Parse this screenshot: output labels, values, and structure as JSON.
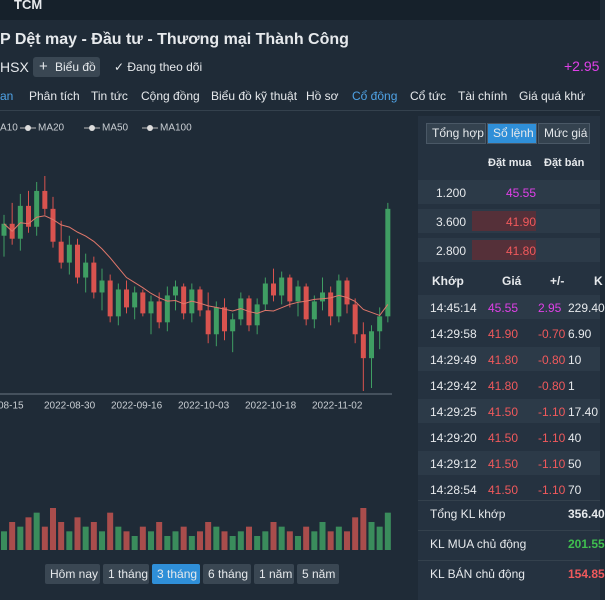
{
  "header": {
    "symbol": "TCM",
    "company": "P Dệt may - Đầu tư - Thương mại Thành Công",
    "exchange": "HSX",
    "chart_button": "Biểu đồ",
    "follow": "Đang theo dõi",
    "change": "+2.95"
  },
  "nav": [
    "an",
    "Phân tích",
    "Tin tức",
    "Cộng đồng",
    "Biểu đồ kỹ thuật",
    "Hồ sơ",
    "Cổ đông",
    "Cổ tức",
    "Tài chính",
    "Giá quá khứ"
  ],
  "chart": {
    "type": "candlestick",
    "legend": [
      "A10",
      "MA20",
      "MA50",
      "MA100"
    ],
    "x_labels": [
      "08-15",
      "2022-08-30",
      "2022-09-16",
      "2022-10-03",
      "2022-10-18",
      "2022-11-02"
    ],
    "candles": [
      [
        44.5,
        45.2,
        43.8,
        44.9
      ],
      [
        44.9,
        45.6,
        44.2,
        44.4
      ],
      [
        44.4,
        45.9,
        44.0,
        45.5
      ],
      [
        45.5,
        46.0,
        44.6,
        44.8
      ],
      [
        44.8,
        46.3,
        44.5,
        46.0
      ],
      [
        46.0,
        46.5,
        45.2,
        45.4
      ],
      [
        45.4,
        45.8,
        44.1,
        44.3
      ],
      [
        44.3,
        45.0,
        43.4,
        43.6
      ],
      [
        43.6,
        44.5,
        43.2,
        44.2
      ],
      [
        44.2,
        44.4,
        42.9,
        43.1
      ],
      [
        43.1,
        43.9,
        42.6,
        43.6
      ],
      [
        43.6,
        43.8,
        42.4,
        42.6
      ],
      [
        42.6,
        43.4,
        42.0,
        43.0
      ],
      [
        43.0,
        43.2,
        41.6,
        41.8
      ],
      [
        41.8,
        42.9,
        41.5,
        42.7
      ],
      [
        42.7,
        43.0,
        41.9,
        42.1
      ],
      [
        42.1,
        42.8,
        41.7,
        42.6
      ],
      [
        42.6,
        42.7,
        41.8,
        41.9
      ],
      [
        41.9,
        42.5,
        41.2,
        42.3
      ],
      [
        42.3,
        42.6,
        41.4,
        41.6
      ],
      [
        41.6,
        42.8,
        41.3,
        42.5
      ],
      [
        42.5,
        43.0,
        42.0,
        42.8
      ],
      [
        42.8,
        42.9,
        41.7,
        41.9
      ],
      [
        41.9,
        42.9,
        41.6,
        42.7
      ],
      [
        42.7,
        42.8,
        41.8,
        42.0
      ],
      [
        42.0,
        42.6,
        40.9,
        41.2
      ],
      [
        41.2,
        42.3,
        40.8,
        42.1
      ],
      [
        42.1,
        42.4,
        41.0,
        41.3
      ],
      [
        41.3,
        41.9,
        40.6,
        41.7
      ],
      [
        41.7,
        42.6,
        41.5,
        42.4
      ],
      [
        42.4,
        42.5,
        41.3,
        41.5
      ],
      [
        41.5,
        42.4,
        41.2,
        42.2
      ],
      [
        42.2,
        43.1,
        42.0,
        42.9
      ],
      [
        42.9,
        43.4,
        42.3,
        42.5
      ],
      [
        42.5,
        43.3,
        42.2,
        43.1
      ],
      [
        43.1,
        43.2,
        42.1,
        42.3
      ],
      [
        42.3,
        43.0,
        41.8,
        42.8
      ],
      [
        42.8,
        42.9,
        41.5,
        41.7
      ],
      [
        41.7,
        42.5,
        41.4,
        42.3
      ],
      [
        42.3,
        43.1,
        42.0,
        42.6
      ],
      [
        42.6,
        42.8,
        41.5,
        41.8
      ],
      [
        41.8,
        43.2,
        41.6,
        43.0
      ],
      [
        43.0,
        43.1,
        41.9,
        42.2
      ],
      [
        42.2,
        42.4,
        40.9,
        41.2
      ],
      [
        41.2,
        41.6,
        39.3,
        40.4
      ],
      [
        40.4,
        41.5,
        39.4,
        41.3
      ],
      [
        41.3,
        42.1,
        40.7,
        41.8
      ],
      [
        41.8,
        45.6,
        41.6,
        45.4
      ]
    ],
    "volume": [
      4,
      6,
      5,
      7,
      8,
      5,
      9,
      6,
      4,
      7,
      5,
      6,
      4,
      8,
      5,
      4,
      3,
      5,
      4,
      6,
      3,
      4,
      5,
      3,
      4,
      6,
      5,
      4,
      3,
      4,
      5,
      3,
      4,
      6,
      5,
      4,
      3,
      5,
      4,
      6,
      4,
      5,
      4,
      7,
      9,
      6,
      5,
      8
    ],
    "ranges": [
      "Hôm nay",
      "1 tháng",
      "3 tháng",
      "6 tháng",
      "1 năm",
      "5 năm"
    ],
    "active_range": 2
  },
  "orderbook": {
    "tabs": [
      "Tổng hợp",
      "Sổ lệnh",
      "Mức giá"
    ],
    "active_tab": 1,
    "headers": [
      "Đặt mua",
      "Đặt bán"
    ],
    "rows": [
      {
        "volume": "1.200",
        "bid": "45.55"
      },
      {
        "volume": "3.600",
        "bid": "41.90"
      },
      {
        "volume": "2.800",
        "bid": "41.80"
      }
    ]
  },
  "trades": {
    "headers": [
      "Khớp",
      "Giá",
      "+/-",
      "K"
    ],
    "rows": [
      [
        "14:45:14",
        "45.55",
        "2.95",
        "229.40"
      ],
      [
        "14:29:58",
        "41.90",
        "-0.70",
        "6.90"
      ],
      [
        "14:29:49",
        "41.80",
        "-0.80",
        "10"
      ],
      [
        "14:29:42",
        "41.80",
        "-0.80",
        "1"
      ],
      [
        "14:29:25",
        "41.50",
        "-1.10",
        "17.40"
      ],
      [
        "14:29:20",
        "41.50",
        "-1.10",
        "40"
      ],
      [
        "14:29:12",
        "41.50",
        "-1.10",
        "50"
      ],
      [
        "14:28:54",
        "41.50",
        "-1.10",
        "70"
      ]
    ]
  },
  "summary": [
    {
      "label": "Tổng KL khớp",
      "value": "356.40"
    },
    {
      "label": "KL MUA chủ động",
      "value": "201.55"
    },
    {
      "label": "KL BÁN chủ động",
      "value": "154.85"
    }
  ]
}
